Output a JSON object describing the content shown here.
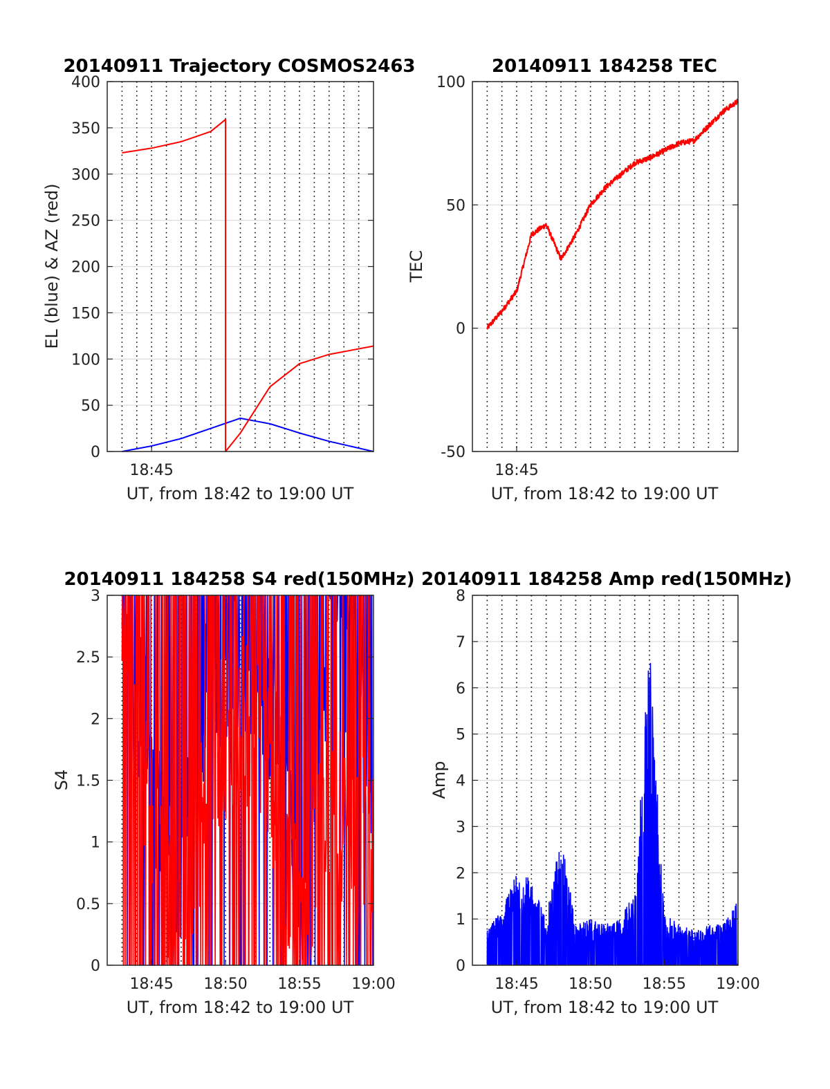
{
  "colors": {
    "red": "#ff0000",
    "blue": "#0000ff",
    "grid": "#dddddd",
    "axis": "#262626"
  },
  "chart_data": [
    {
      "type": "line",
      "title": "20140911 Trajectory COSMOS2463",
      "xlabel": "UT, from 18:42 to 19:00 UT",
      "ylabel": "EL (blue) & AZ (red)",
      "xlim": [
        "18:42",
        "19:00"
      ],
      "ylim": [
        0,
        400
      ],
      "xticklabels": [
        "18:45"
      ],
      "yticks": [
        0,
        50,
        100,
        150,
        200,
        250,
        300,
        350,
        400
      ],
      "grid": true,
      "series": [
        {
          "color": "#0000ff",
          "x": [
            "18:43",
            "18:45",
            "18:47",
            "18:49",
            "18:51",
            "18:53",
            "18:55",
            "18:57",
            "19:00"
          ],
          "y": [
            0,
            6,
            14,
            25,
            36,
            30,
            20,
            11,
            0
          ]
        },
        {
          "color": "#ff0000",
          "x": [
            "18:43",
            "18:45",
            "18:47",
            "18:49",
            "18:50",
            "18:50",
            "18:51",
            "18:52",
            "18:53",
            "18:55",
            "18:57",
            "19:00"
          ],
          "y": [
            323,
            328,
            335,
            346,
            359,
            0,
            20,
            45,
            70,
            95,
            105,
            114
          ]
        }
      ]
    },
    {
      "type": "line",
      "title": "20140911 184258 TEC",
      "xlabel": "UT, from 18:42 to 19:00 UT",
      "ylabel": "TEC",
      "xlim": [
        "18:42",
        "19:00"
      ],
      "ylim": [
        -50,
        100
      ],
      "xticklabels": [
        "18:45"
      ],
      "yticks": [
        -50,
        0,
        50,
        100
      ],
      "grid": true,
      "series": [
        {
          "color": "#ff0000",
          "x": [
            "18:43",
            "18:44",
            "18:45",
            "18:46",
            "18:47",
            "18:48",
            "18:49",
            "18:50",
            "18:51",
            "18:52",
            "18:53",
            "18:54",
            "18:55",
            "18:56",
            "18:57",
            "18:58",
            "18:59",
            "19:00"
          ],
          "y": [
            0,
            7,
            15,
            38,
            42,
            28,
            38,
            50,
            57,
            62,
            67,
            69,
            72,
            75,
            76,
            82,
            88,
            92
          ]
        }
      ]
    },
    {
      "type": "line",
      "title": "20140911 184258 S4 red(150MHz)",
      "xlabel": "UT, from 18:42 to 19:00 UT",
      "ylabel": "S4",
      "xlim": [
        "18:42",
        "19:00"
      ],
      "ylim": [
        0,
        3
      ],
      "xticklabels": [
        "18:45",
        "18:50",
        "18:55",
        "19:00"
      ],
      "yticks": [
        0,
        0.5,
        1,
        1.5,
        2,
        2.5,
        3
      ],
      "grid": true,
      "series": [
        {
          "color": "#0000ff",
          "x": [
            "18:43",
            "18:45",
            "18:47",
            "18:49",
            "18:51",
            "18:53",
            "18:55",
            "18:57",
            "19:00"
          ],
          "y": [
            2.8,
            1.6,
            0.8,
            2.4,
            2.6,
            2.2,
            0.5,
            2.8,
            1.5
          ]
        },
        {
          "color": "#ff0000",
          "x": [
            "18:43",
            "18:45",
            "18:47",
            "18:49",
            "18:51",
            "18:53",
            "18:55",
            "18:57",
            "19:00"
          ],
          "y": [
            2.3,
            1.1,
            0.3,
            1.7,
            2.0,
            1.6,
            0.3,
            1.3,
            1.0
          ]
        }
      ]
    },
    {
      "type": "line",
      "title": "20140911 184258 Amp red(150MHz)",
      "xlabel": "UT, from 18:42 to 19:00 UT",
      "ylabel": "Amp",
      "xlim": [
        "18:42",
        "19:00"
      ],
      "ylim": [
        0,
        8
      ],
      "xticklabels": [
        "18:45",
        "18:50",
        "18:55",
        "19:00"
      ],
      "yticks": [
        0,
        1,
        2,
        3,
        4,
        5,
        6,
        7,
        8
      ],
      "grid": true,
      "series": [
        {
          "color": "#0000ff",
          "x": [
            "18:43",
            "18:44",
            "18:45",
            "18:46",
            "18:47",
            "18:48",
            "18:49",
            "18:50",
            "18:51",
            "18:52",
            "18:53",
            "18:54",
            "18:55",
            "18:56",
            "18:57",
            "18:58",
            "18:59",
            "19:00"
          ],
          "y": [
            0.7,
            1.1,
            1.8,
            1.7,
            0.9,
            2.6,
            0.8,
            0.9,
            0.8,
            0.9,
            1.5,
            6.3,
            1.0,
            0.8,
            0.7,
            0.8,
            0.8,
            1.3
          ]
        }
      ]
    }
  ]
}
